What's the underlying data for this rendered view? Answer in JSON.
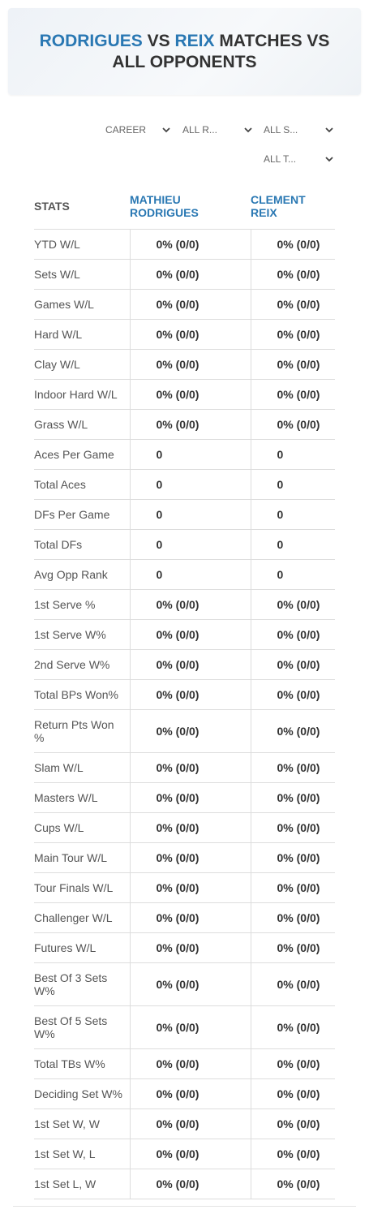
{
  "header": {
    "title_parts": [
      "RODRIGUES",
      "VS",
      "REIX",
      "MATCHES VS ALL OPPONENTS"
    ]
  },
  "filters": [
    "CAREER",
    "ALL R...",
    "ALL S...",
    "ALL T..."
  ],
  "table": {
    "headers": [
      "STATS",
      "MATHIEU RODRIGUES",
      "CLEMENT REIX"
    ],
    "rows": [
      [
        "YTD W/L",
        "0% (0/0)",
        "0% (0/0)"
      ],
      [
        "Sets W/L",
        "0% (0/0)",
        "0% (0/0)"
      ],
      [
        "Games W/L",
        "0% (0/0)",
        "0% (0/0)"
      ],
      [
        "Hard W/L",
        "0% (0/0)",
        "0% (0/0)"
      ],
      [
        "Clay W/L",
        "0% (0/0)",
        "0% (0/0)"
      ],
      [
        "Indoor Hard W/L",
        "0% (0/0)",
        "0% (0/0)"
      ],
      [
        "Grass W/L",
        "0% (0/0)",
        "0% (0/0)"
      ],
      [
        "Aces Per Game",
        "0",
        "0"
      ],
      [
        "Total Aces",
        "0",
        "0"
      ],
      [
        "DFs Per Game",
        "0",
        "0"
      ],
      [
        "Total DFs",
        "0",
        "0"
      ],
      [
        "Avg Opp Rank",
        "0",
        "0"
      ],
      [
        "1st Serve %",
        "0% (0/0)",
        "0% (0/0)"
      ],
      [
        "1st Serve W%",
        "0% (0/0)",
        "0% (0/0)"
      ],
      [
        "2nd Serve W%",
        "0% (0/0)",
        "0% (0/0)"
      ],
      [
        "Total BPs Won%",
        "0% (0/0)",
        "0% (0/0)"
      ],
      [
        "Return Pts Won %",
        "0% (0/0)",
        "0% (0/0)"
      ],
      [
        "Slam W/L",
        "0% (0/0)",
        "0% (0/0)"
      ],
      [
        "Masters W/L",
        "0% (0/0)",
        "0% (0/0)"
      ],
      [
        "Cups W/L",
        "0% (0/0)",
        "0% (0/0)"
      ],
      [
        "Main Tour W/L",
        "0% (0/0)",
        "0% (0/0)"
      ],
      [
        "Tour Finals W/L",
        "0% (0/0)",
        "0% (0/0)"
      ],
      [
        "Challenger W/L",
        "0% (0/0)",
        "0% (0/0)"
      ],
      [
        "Futures W/L",
        "0% (0/0)",
        "0% (0/0)"
      ],
      [
        "Best Of 3 Sets W%",
        "0% (0/0)",
        "0% (0/0)"
      ],
      [
        "Best Of 5 Sets W%",
        "0% (0/0)",
        "0% (0/0)"
      ],
      [
        "Total TBs W%",
        "0% (0/0)",
        "0% (0/0)"
      ],
      [
        "Deciding Set W%",
        "0% (0/0)",
        "0% (0/0)"
      ],
      [
        "1st Set W, W",
        "0% (0/0)",
        "0% (0/0)"
      ],
      [
        "1st Set W, L",
        "0% (0/0)",
        "0% (0/0)"
      ],
      [
        "1st Set L, W",
        "0% (0/0)",
        "0% (0/0)"
      ]
    ]
  }
}
